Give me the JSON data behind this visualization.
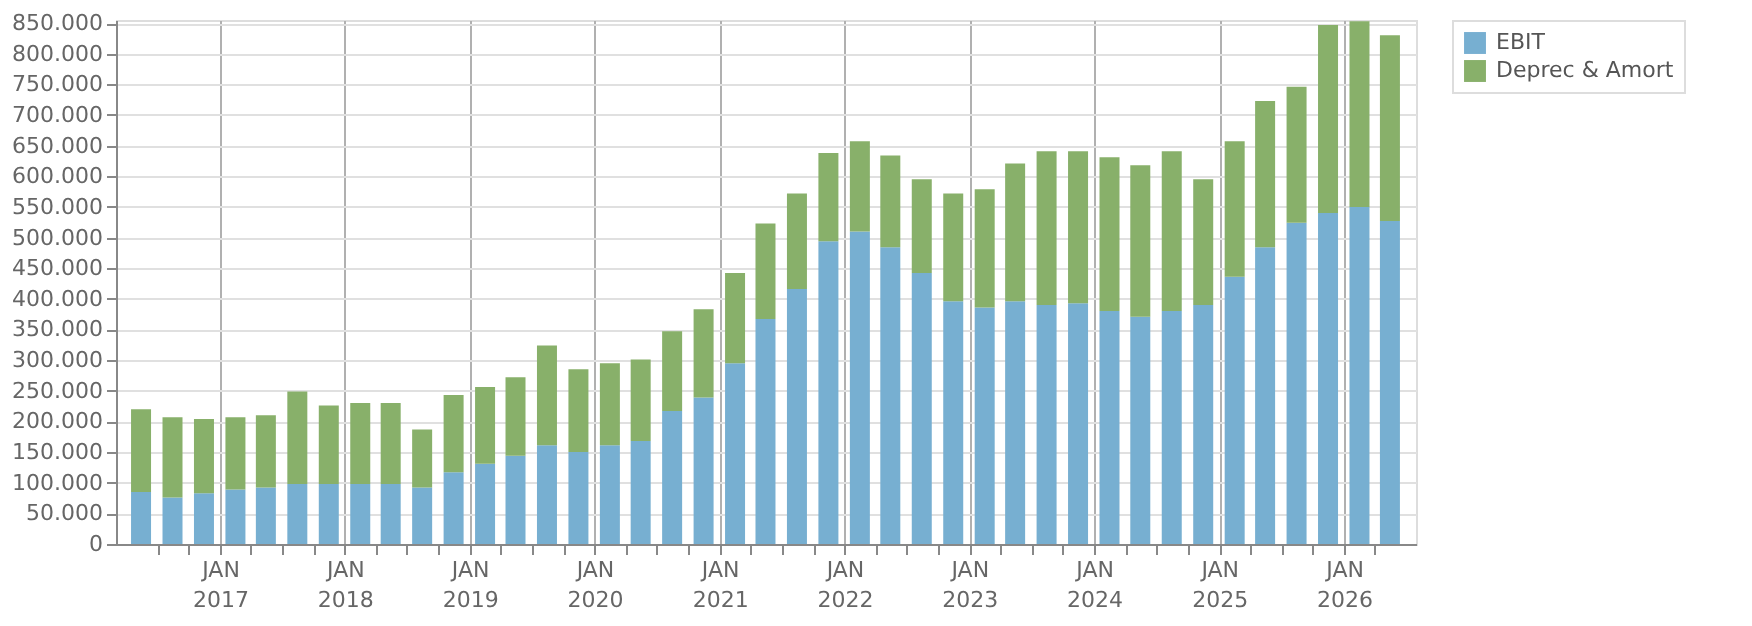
{
  "chart_data": {
    "type": "bar",
    "stacked": true,
    "legend": "top right",
    "grid": true,
    "x": [
      "2016-05-15",
      "2016-08-15",
      "2016-11-15",
      "2017-02-15",
      "2017-05-15",
      "2017-08-15",
      "2017-11-15",
      "2018-02-15",
      "2018-05-15",
      "2018-08-15",
      "2018-11-15",
      "2019-02-15",
      "2019-05-15",
      "2019-08-15",
      "2019-11-15",
      "2020-02-15",
      "2020-05-15",
      "2020-08-15",
      "2020-11-15",
      "2021-02-15",
      "2021-05-15",
      "2021-08-15",
      "2021-11-15",
      "2022-02-15",
      "2022-05-15",
      "2022-08-15",
      "2022-11-15",
      "2023-02-15",
      "2023-05-15",
      "2023-08-15",
      "2023-11-15",
      "2024-02-15",
      "2024-05-15",
      "2024-08-15",
      "2024-11-15",
      "2025-02-15",
      "2025-05-15",
      "2025-08-15",
      "2025-11-15",
      "2026-02-15",
      "2026-05-15"
    ],
    "series": [
      {
        "name": "EBIT",
        "color": "#77afd1",
        "values": [
          85000,
          76000,
          83000,
          89000,
          92000,
          98000,
          98000,
          98000,
          98000,
          92000,
          117000,
          131000,
          144000,
          161000,
          150000,
          161000,
          168000,
          217000,
          239000,
          295000,
          367000,
          416000,
          494000,
          510000,
          484000,
          442000,
          396000,
          386000,
          396000,
          390000,
          393000,
          380000,
          371000,
          380000,
          390000,
          436000,
          484000,
          524000,
          540000,
          550000,
          527000
        ]
      },
      {
        "name": "Deprec & Amort",
        "color": "#88b06a",
        "values": [
          135000,
          131000,
          121000,
          118000,
          118000,
          151000,
          128000,
          132000,
          132000,
          95000,
          126000,
          125000,
          128000,
          163000,
          135000,
          134000,
          133000,
          130000,
          144000,
          147000,
          156000,
          156000,
          144000,
          147000,
          150000,
          153000,
          176000,
          193000,
          225000,
          251000,
          248000,
          251000,
          247000,
          261000,
          205000,
          221000,
          239000,
          222000,
          307000,
          303000,
          303000
        ]
      }
    ],
    "xlim": [
      "2016-04-01",
      "2026-07-01"
    ],
    "xticks": [
      {
        "value": "2016-07-01",
        "label": null
      },
      {
        "value": "2016-10-01",
        "label": null
      },
      {
        "value": "2017-01-01",
        "label": "JAN 2017"
      },
      {
        "value": "2017-04-01",
        "label": null
      },
      {
        "value": "2017-07-01",
        "label": null
      },
      {
        "value": "2017-10-01",
        "label": null
      },
      {
        "value": "2018-01-01",
        "label": "JAN 2018"
      },
      {
        "value": "2018-04-01",
        "label": null
      },
      {
        "value": "2018-07-01",
        "label": null
      },
      {
        "value": "2018-10-01",
        "label": null
      },
      {
        "value": "2019-01-01",
        "label": "JAN 2019"
      },
      {
        "value": "2019-04-01",
        "label": null
      },
      {
        "value": "2019-07-01",
        "label": null
      },
      {
        "value": "2019-10-01",
        "label": null
      },
      {
        "value": "2020-01-01",
        "label": "JAN 2020"
      },
      {
        "value": "2020-04-01",
        "label": null
      },
      {
        "value": "2020-07-01",
        "label": null
      },
      {
        "value": "2020-10-01",
        "label": null
      },
      {
        "value": "2021-01-01",
        "label": "JAN 2021"
      },
      {
        "value": "2021-04-01",
        "label": null
      },
      {
        "value": "2021-07-01",
        "label": null
      },
      {
        "value": "2021-10-01",
        "label": null
      },
      {
        "value": "2022-01-01",
        "label": "JAN 2022"
      },
      {
        "value": "2022-04-01",
        "label": null
      },
      {
        "value": "2022-07-01",
        "label": null
      },
      {
        "value": "2022-10-01",
        "label": null
      },
      {
        "value": "2023-01-01",
        "label": "JAN 2023"
      },
      {
        "value": "2023-04-01",
        "label": null
      },
      {
        "value": "2023-07-01",
        "label": null
      },
      {
        "value": "2023-10-01",
        "label": null
      },
      {
        "value": "2024-01-01",
        "label": "JAN 2024"
      },
      {
        "value": "2024-04-01",
        "label": null
      },
      {
        "value": "2024-07-01",
        "label": null
      },
      {
        "value": "2024-10-01",
        "label": null
      },
      {
        "value": "2025-01-01",
        "label": "JAN 2025"
      },
      {
        "value": "2025-04-01",
        "label": null
      },
      {
        "value": "2025-07-01",
        "label": null
      },
      {
        "value": "2025-10-01",
        "label": null
      },
      {
        "value": "2026-01-01",
        "label": "JAN 2026"
      },
      {
        "value": "2026-04-01",
        "label": null
      }
    ],
    "ylim": [
      0,
      855000
    ],
    "yticks": [
      0,
      {
        "value": 50000,
        "label": "50.000"
      },
      {
        "value": 100000,
        "label": "100.000"
      },
      {
        "value": 150000,
        "label": "150.000"
      },
      {
        "value": 200000,
        "label": "200.000"
      },
      {
        "value": 250000,
        "label": "250.000"
      },
      {
        "value": 300000,
        "label": "300.000"
      },
      {
        "value": 350000,
        "label": "350.000"
      },
      {
        "value": 400000,
        "label": "400.000"
      },
      {
        "value": 450000,
        "label": "450.000"
      },
      {
        "value": 500000,
        "label": "500.000"
      },
      {
        "value": 550000,
        "label": "550.000"
      },
      {
        "value": 600000,
        "label": "600.000"
      },
      {
        "value": 650000,
        "label": "650.000"
      },
      {
        "value": 700000,
        "label": "700.000"
      },
      {
        "value": 750000,
        "label": "750.000"
      },
      {
        "value": 800000,
        "label": "800.000"
      },
      {
        "value": 850000,
        "label": "850.000"
      }
    ]
  }
}
